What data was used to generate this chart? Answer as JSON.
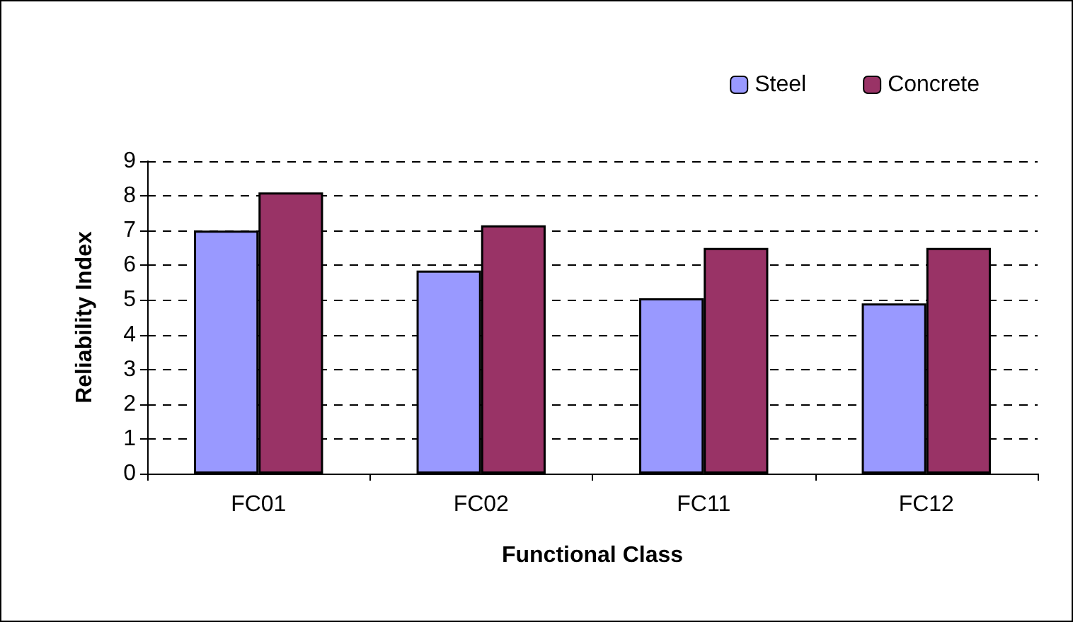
{
  "chart_data": {
    "type": "bar",
    "xlabel": "Functional Class",
    "ylabel": "Reliability Index",
    "categories": [
      "FC01",
      "FC02",
      "FC11",
      "FC12"
    ],
    "series": [
      {
        "name": "Steel",
        "color": "#9999ff",
        "values": [
          7.0,
          5.85,
          5.05,
          4.9
        ]
      },
      {
        "name": "Concrete",
        "color": "#993366",
        "values": [
          8.1,
          7.15,
          6.5,
          6.5
        ]
      }
    ],
    "ylim": [
      0,
      9
    ],
    "yticks": [
      0,
      1,
      2,
      3,
      4,
      5,
      6,
      7,
      8,
      9
    ],
    "grid": "y",
    "legend": "top right"
  }
}
